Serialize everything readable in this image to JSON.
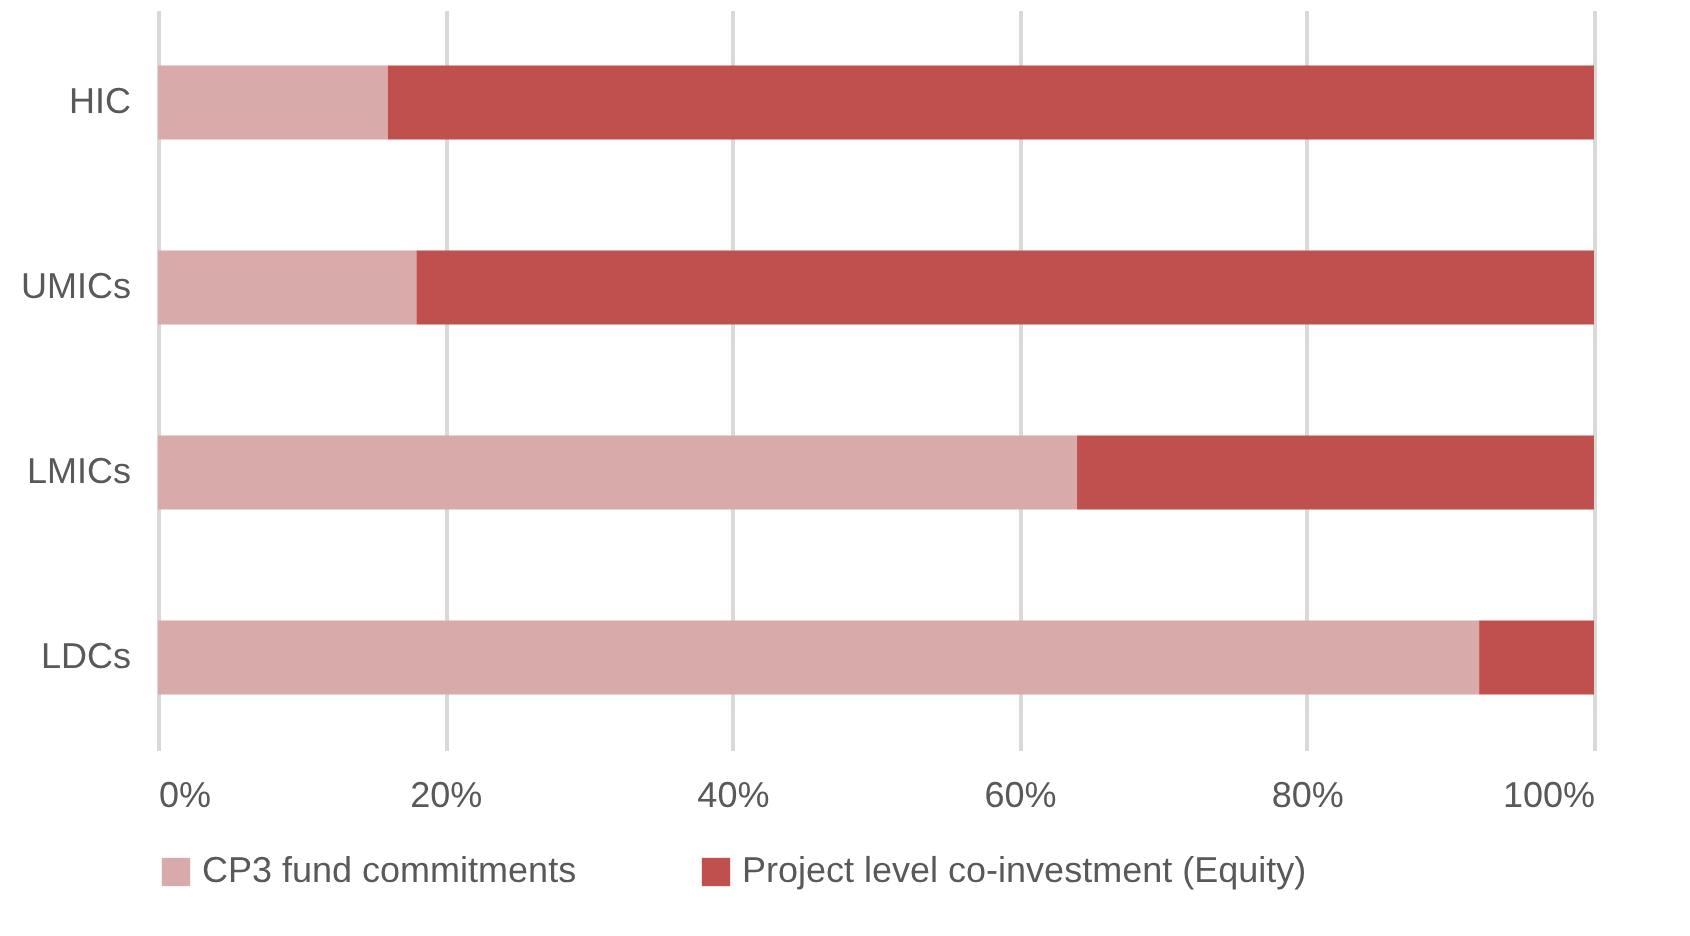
{
  "chart_data": {
    "type": "bar",
    "orientation": "horizontal",
    "stacked": true,
    "categories": [
      "HIC",
      "UMICs",
      "LMICs",
      "LDCs"
    ],
    "series": [
      {
        "name": "CP3 fund commitments",
        "color": "#d9aaaa",
        "values": [
          16,
          18,
          64,
          92
        ]
      },
      {
        "name": "Project level co-investment (Equity)",
        "color": "#c0504d",
        "values": [
          84,
          82,
          36,
          8
        ]
      }
    ],
    "xlim": [
      0,
      100
    ],
    "xticks": [
      {
        "value": 0,
        "label": "0%"
      },
      {
        "value": 20,
        "label": "20%"
      },
      {
        "value": 40,
        "label": "40%"
      },
      {
        "value": 60,
        "label": "60%"
      },
      {
        "value": 80,
        "label": "80%"
      },
      {
        "value": 100,
        "label": "100%"
      }
    ],
    "grid": "x",
    "legend": "bottom"
  }
}
